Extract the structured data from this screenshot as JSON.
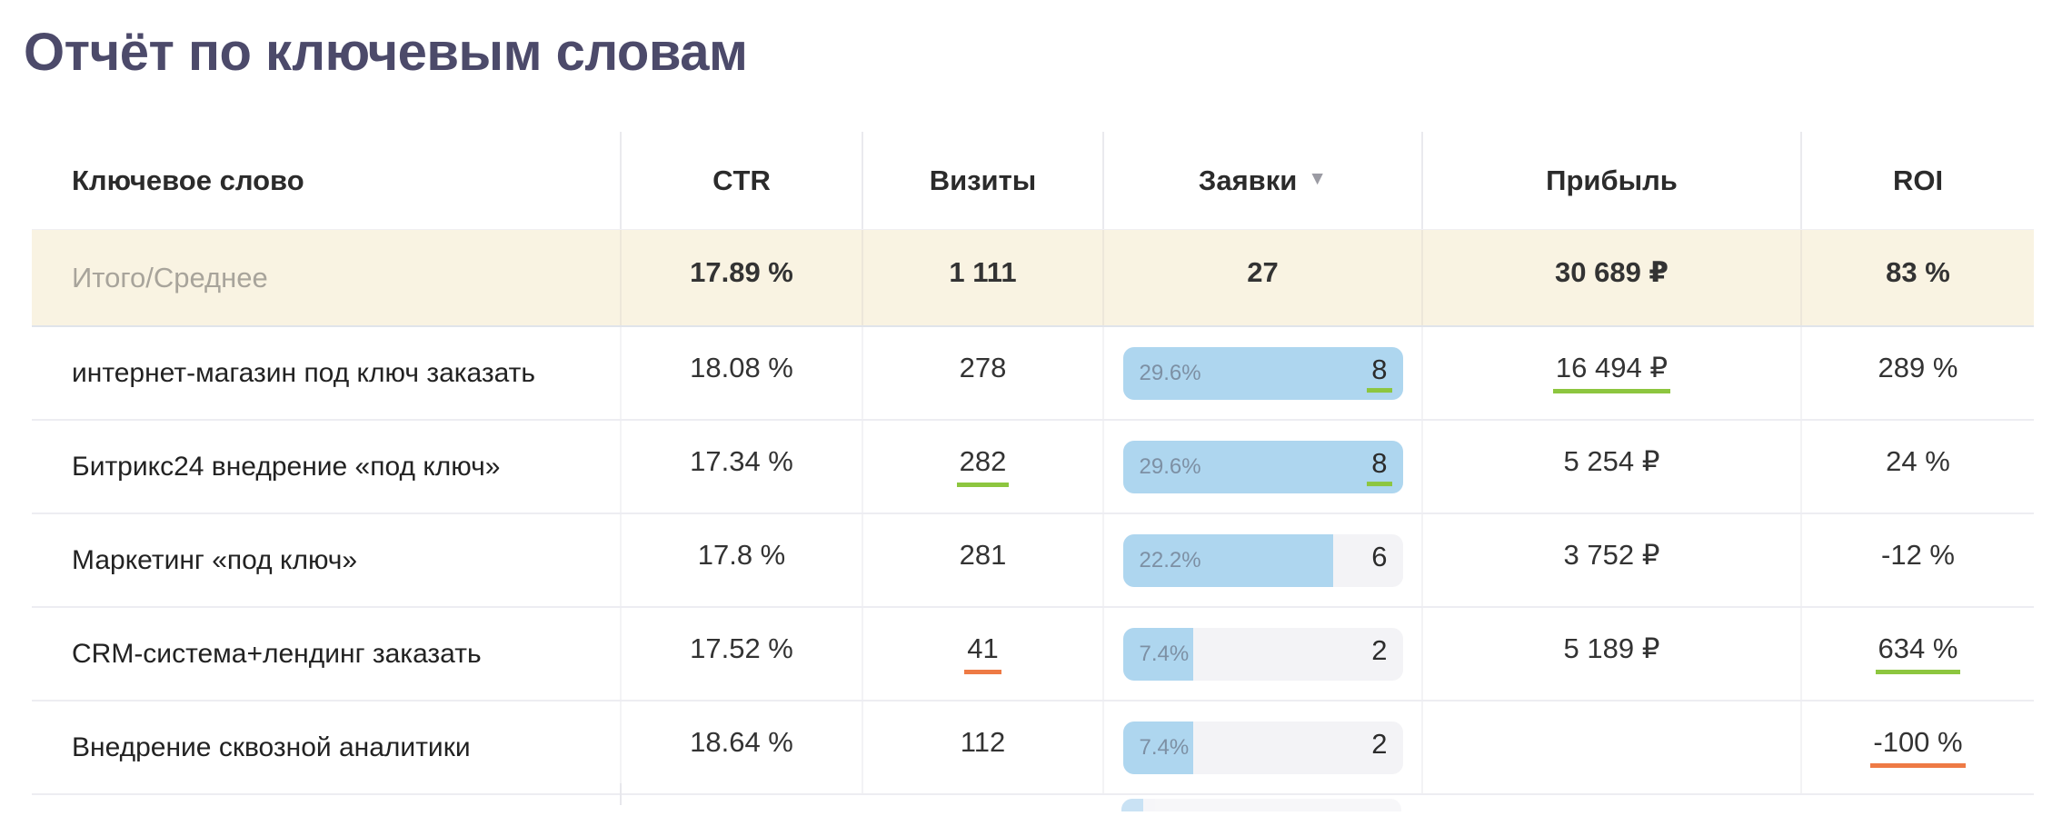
{
  "page": {
    "title": "Отчёт по ключевым словам"
  },
  "colors": {
    "title": "#4c4a6a",
    "summary_background": "#f9f3e2",
    "bar_fill_blue": "#aed6ef",
    "bar_track": "#f3f3f6",
    "underline_green": "#8dc63f",
    "underline_orange": "#ee7a45"
  },
  "icons": {
    "sort_desc": "▼"
  },
  "table": {
    "columns": [
      {
        "label": "Ключевое слово",
        "sorted": null
      },
      {
        "label": "CTR",
        "sorted": null
      },
      {
        "label": "Визиты",
        "sorted": null
      },
      {
        "label": "Заявки",
        "sorted": "desc"
      },
      {
        "label": "Прибыль",
        "sorted": null
      },
      {
        "label": "ROI",
        "sorted": null
      }
    ],
    "summary": {
      "label": "Итого/Среднее",
      "ctr": "17.89 %",
      "visits": "1 111",
      "leads": "27",
      "profit": "30 689 ₽",
      "roi": "83 %"
    },
    "rows": [
      {
        "keyword": "интернет-магазин под ключ заказать",
        "ctr": "18.08 %",
        "visits": "278",
        "visits_mark": null,
        "lead_share_label": "29.6%",
        "lead_fill_pct": 100,
        "lead_count": "8",
        "lead_mark": "green",
        "profit": "16 494 ₽",
        "profit_mark": "green",
        "roi": "289 %",
        "roi_mark": null
      },
      {
        "keyword": "Битрикс24 внедрение «под ключ»",
        "ctr": "17.34 %",
        "visits": "282",
        "visits_mark": "green",
        "lead_share_label": "29.6%",
        "lead_fill_pct": 100,
        "lead_count": "8",
        "lead_mark": "green",
        "profit": "5 254 ₽",
        "profit_mark": null,
        "roi": "24 %",
        "roi_mark": null
      },
      {
        "keyword": "Маркетинг «под ключ»",
        "ctr": "17.8 %",
        "visits": "281",
        "visits_mark": null,
        "lead_share_label": "22.2%",
        "lead_fill_pct": 75,
        "lead_count": "6",
        "lead_mark": null,
        "profit": "3 752 ₽",
        "profit_mark": null,
        "roi": "-12 %",
        "roi_mark": null
      },
      {
        "keyword": "CRM-система+лендинг заказать",
        "ctr": "17.52 %",
        "visits": "41",
        "visits_mark": "orange",
        "lead_share_label": "7.4%",
        "lead_fill_pct": 25,
        "lead_count": "2",
        "lead_mark": null,
        "profit": "5 189 ₽",
        "profit_mark": null,
        "roi": "634 %",
        "roi_mark": "green"
      },
      {
        "keyword": "Внедрение сквозной аналитики",
        "ctr": "18.64 %",
        "visits": "112",
        "visits_mark": null,
        "lead_share_label": "7.4%",
        "lead_fill_pct": 25,
        "lead_count": "2",
        "lead_mark": null,
        "profit": "",
        "profit_mark": null,
        "roi": "-100 %",
        "roi_mark": "orange"
      }
    ]
  }
}
